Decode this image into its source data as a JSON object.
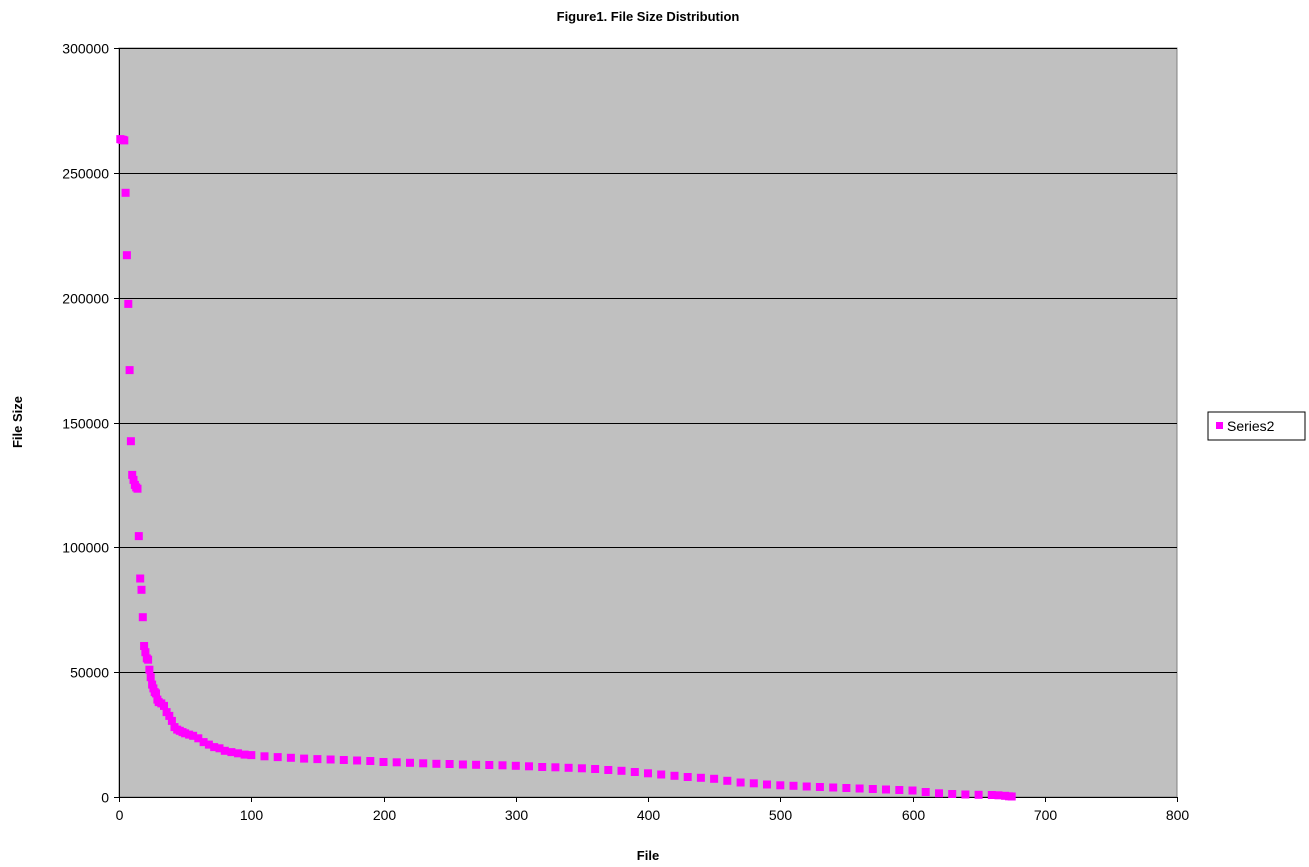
{
  "chart_data": {
    "type": "scatter",
    "title": "Figure1. File Size Distribution",
    "xlabel": "File",
    "ylabel": "File Size",
    "xlim": [
      0,
      800
    ],
    "ylim": [
      0,
      300000
    ],
    "xticks": [
      0,
      100,
      200,
      300,
      400,
      500,
      600,
      700,
      800
    ],
    "yticks": [
      0,
      50000,
      100000,
      150000,
      200000,
      250000,
      300000
    ],
    "grid": "horizontal",
    "legend_position": "right",
    "colors": {
      "plot_background": "#c0c0c0",
      "marker": "#ff00ff",
      "gridline": "#000000"
    },
    "series": [
      {
        "name": "Series2",
        "x": [
          1,
          2,
          3,
          4,
          5,
          6,
          7,
          8,
          9,
          10,
          11,
          12,
          13,
          14,
          15,
          16,
          17,
          18,
          19,
          20,
          21,
          22,
          23,
          24,
          25,
          26,
          27,
          28,
          29,
          30,
          32,
          34,
          36,
          38,
          40,
          42,
          44,
          46,
          48,
          50,
          53,
          56,
          60,
          64,
          68,
          72,
          76,
          80,
          85,
          90,
          95,
          100,
          110,
          120,
          130,
          140,
          150,
          160,
          170,
          180,
          190,
          200,
          210,
          220,
          230,
          240,
          250,
          260,
          270,
          280,
          290,
          300,
          310,
          320,
          330,
          340,
          350,
          360,
          370,
          380,
          390,
          400,
          410,
          420,
          430,
          440,
          450,
          460,
          470,
          480,
          490,
          500,
          510,
          520,
          530,
          540,
          550,
          560,
          570,
          580,
          590,
          600,
          610,
          620,
          630,
          640,
          650,
          660,
          665,
          670,
          673,
          675
        ],
        "y": [
          263500,
          263300,
          263200,
          263000,
          242000,
          217000,
          197500,
          171000,
          142500,
          129000,
          127000,
          125000,
          124000,
          123500,
          104500,
          87500,
          83000,
          72000,
          60500,
          58000,
          55500,
          55000,
          51000,
          48000,
          45000,
          43500,
          42000,
          41500,
          39000,
          38000,
          37500,
          36500,
          34000,
          32500,
          30500,
          28000,
          27000,
          26500,
          26000,
          25500,
          25000,
          24500,
          23500,
          22000,
          21000,
          20000,
          19500,
          18500,
          18000,
          17500,
          17000,
          16800,
          16300,
          16000,
          15700,
          15400,
          15200,
          15000,
          14800,
          14600,
          14400,
          14000,
          13900,
          13700,
          13500,
          13300,
          13200,
          13000,
          12900,
          12800,
          12700,
          12500,
          12300,
          12000,
          11900,
          11700,
          11500,
          11200,
          10800,
          10500,
          10000,
          9500,
          9000,
          8500,
          8000,
          7700,
          7300,
          6500,
          5800,
          5500,
          5000,
          4700,
          4500,
          4200,
          4000,
          3800,
          3600,
          3400,
          3200,
          3000,
          2800,
          2600,
          2000,
          1500,
          1200,
          1000,
          900,
          800,
          700,
          500,
          300,
          200
        ]
      }
    ]
  }
}
